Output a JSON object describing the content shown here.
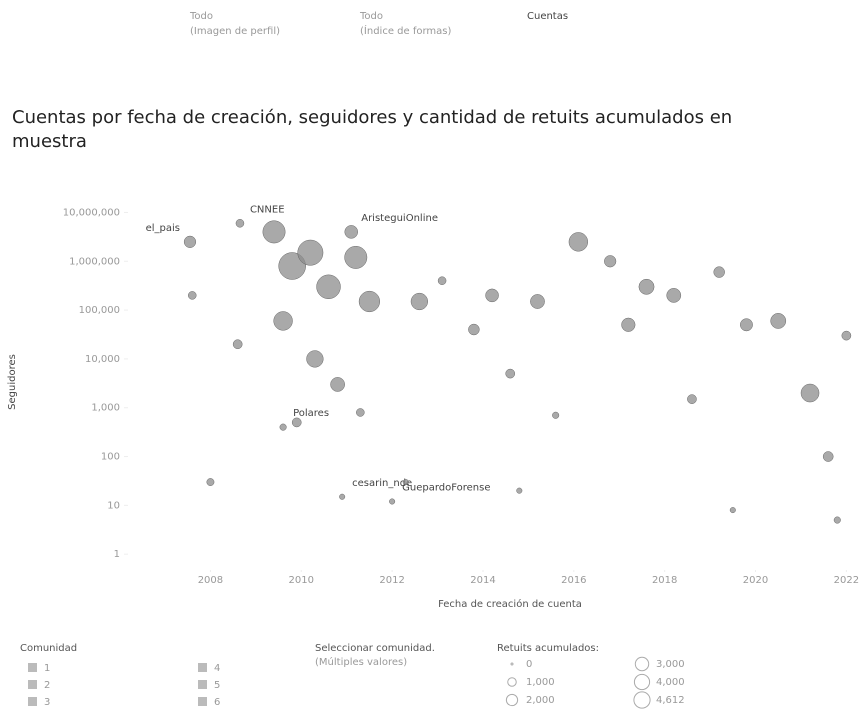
{
  "filters": [
    {
      "value": "Todo",
      "caption": "(Imagen de perfil)"
    },
    {
      "value": "Todo",
      "caption": "(Índice de formas)"
    },
    {
      "value": "Cuentas"
    }
  ],
  "chart_data": {
    "type": "scatter",
    "title": "Cuentas por fecha de creación, seguidores y cantidad de retuits acumulados en muestra",
    "x_label": "Fecha de creación de cuenta",
    "y_label": "Seguidores",
    "log_y": true,
    "color": "#8c8c8c",
    "xlim": [
      2007,
      2022.3
    ],
    "xticks": [
      2008,
      2010,
      2012,
      2014,
      2016,
      2018,
      2020,
      2022
    ],
    "ylim": [
      0.6,
      18000000
    ],
    "yticks": [
      {
        "value": 1,
        "label": "1"
      },
      {
        "value": 10,
        "label": "10"
      },
      {
        "value": 100,
        "label": "100"
      },
      {
        "value": 1000,
        "label": "1,000"
      },
      {
        "value": 10000,
        "label": "10,000"
      },
      {
        "value": 100000,
        "label": "100,000"
      },
      {
        "value": 1000000,
        "label": "1,000,000"
      },
      {
        "value": 10000000,
        "label": "10,000,000"
      }
    ],
    "x": [
      2007.55,
      2008.65,
      2011.1,
      2009.6,
      2010.9,
      2012.0,
      2007.6,
      2008.0,
      2008.6,
      2009.4,
      2009.8,
      2010.2,
      2010.6,
      2011.2,
      2011.5,
      2009.6,
      2010.3,
      2010.8,
      2009.9,
      2011.3,
      2012.6,
      2013.1,
      2013.8,
      2014.2,
      2014.6,
      2015.2,
      2015.6,
      2016.1,
      2016.8,
      2017.2,
      2017.6,
      2018.2,
      2018.6,
      2019.2,
      2019.8,
      2020.5,
      2021.2,
      2021.6,
      2021.8,
      2022.0,
      2012.3,
      2014.8,
      2019.5
    ],
    "values": [
      2500000,
      6000000,
      4000000,
      400,
      15,
      12,
      200000,
      30,
      20000,
      4000000,
      800000,
      1500000,
      300000,
      1200000,
      150000,
      60000,
      10000,
      3000,
      500,
      800,
      150000,
      400000,
      40000,
      200000,
      5000,
      150000,
      700,
      2500000,
      1000000,
      50000,
      300000,
      200000,
      1500,
      600000,
      50000,
      60000,
      2000,
      100,
      5,
      30000,
      30,
      20,
      8
    ],
    "sizes": [
      600,
      200,
      800,
      100,
      50,
      50,
      200,
      150,
      300,
      3000,
      4612,
      4000,
      3500,
      3000,
      2500,
      2000,
      1500,
      1000,
      300,
      200,
      1500,
      200,
      500,
      800,
      300,
      1000,
      100,
      2000,
      600,
      900,
      1200,
      1000,
      300,
      500,
      700,
      1200,
      1800,
      400,
      100,
      300,
      50,
      50,
      50
    ],
    "point_labels": [
      "el_pais",
      "CNNEE",
      "AristeguiOnline",
      "Polares",
      "cesarin_nde",
      "GuepardoForense",
      null,
      null,
      null,
      null,
      null,
      null,
      null,
      null,
      null,
      null,
      null,
      null,
      null,
      null,
      null,
      null,
      null,
      null,
      null,
      null,
      null,
      null,
      null,
      null,
      null,
      null,
      null,
      null,
      null,
      null,
      null,
      null,
      null,
      null,
      null,
      null,
      null
    ]
  },
  "community_legend": {
    "title": "Comunidad",
    "items": [
      "1",
      "2",
      "3",
      "4",
      "5",
      "6"
    ]
  },
  "selector": {
    "title": "Seleccionar comunidad.",
    "value": "(Múltiples valores)"
  },
  "size_legend": {
    "title": "Retuits acumulados:",
    "values": [
      0,
      1000,
      2000,
      3000,
      4000,
      4612
    ],
    "value_labels": [
      "0",
      "1,000",
      "2,000",
      "3,000",
      "4,000",
      "4,612"
    ]
  }
}
